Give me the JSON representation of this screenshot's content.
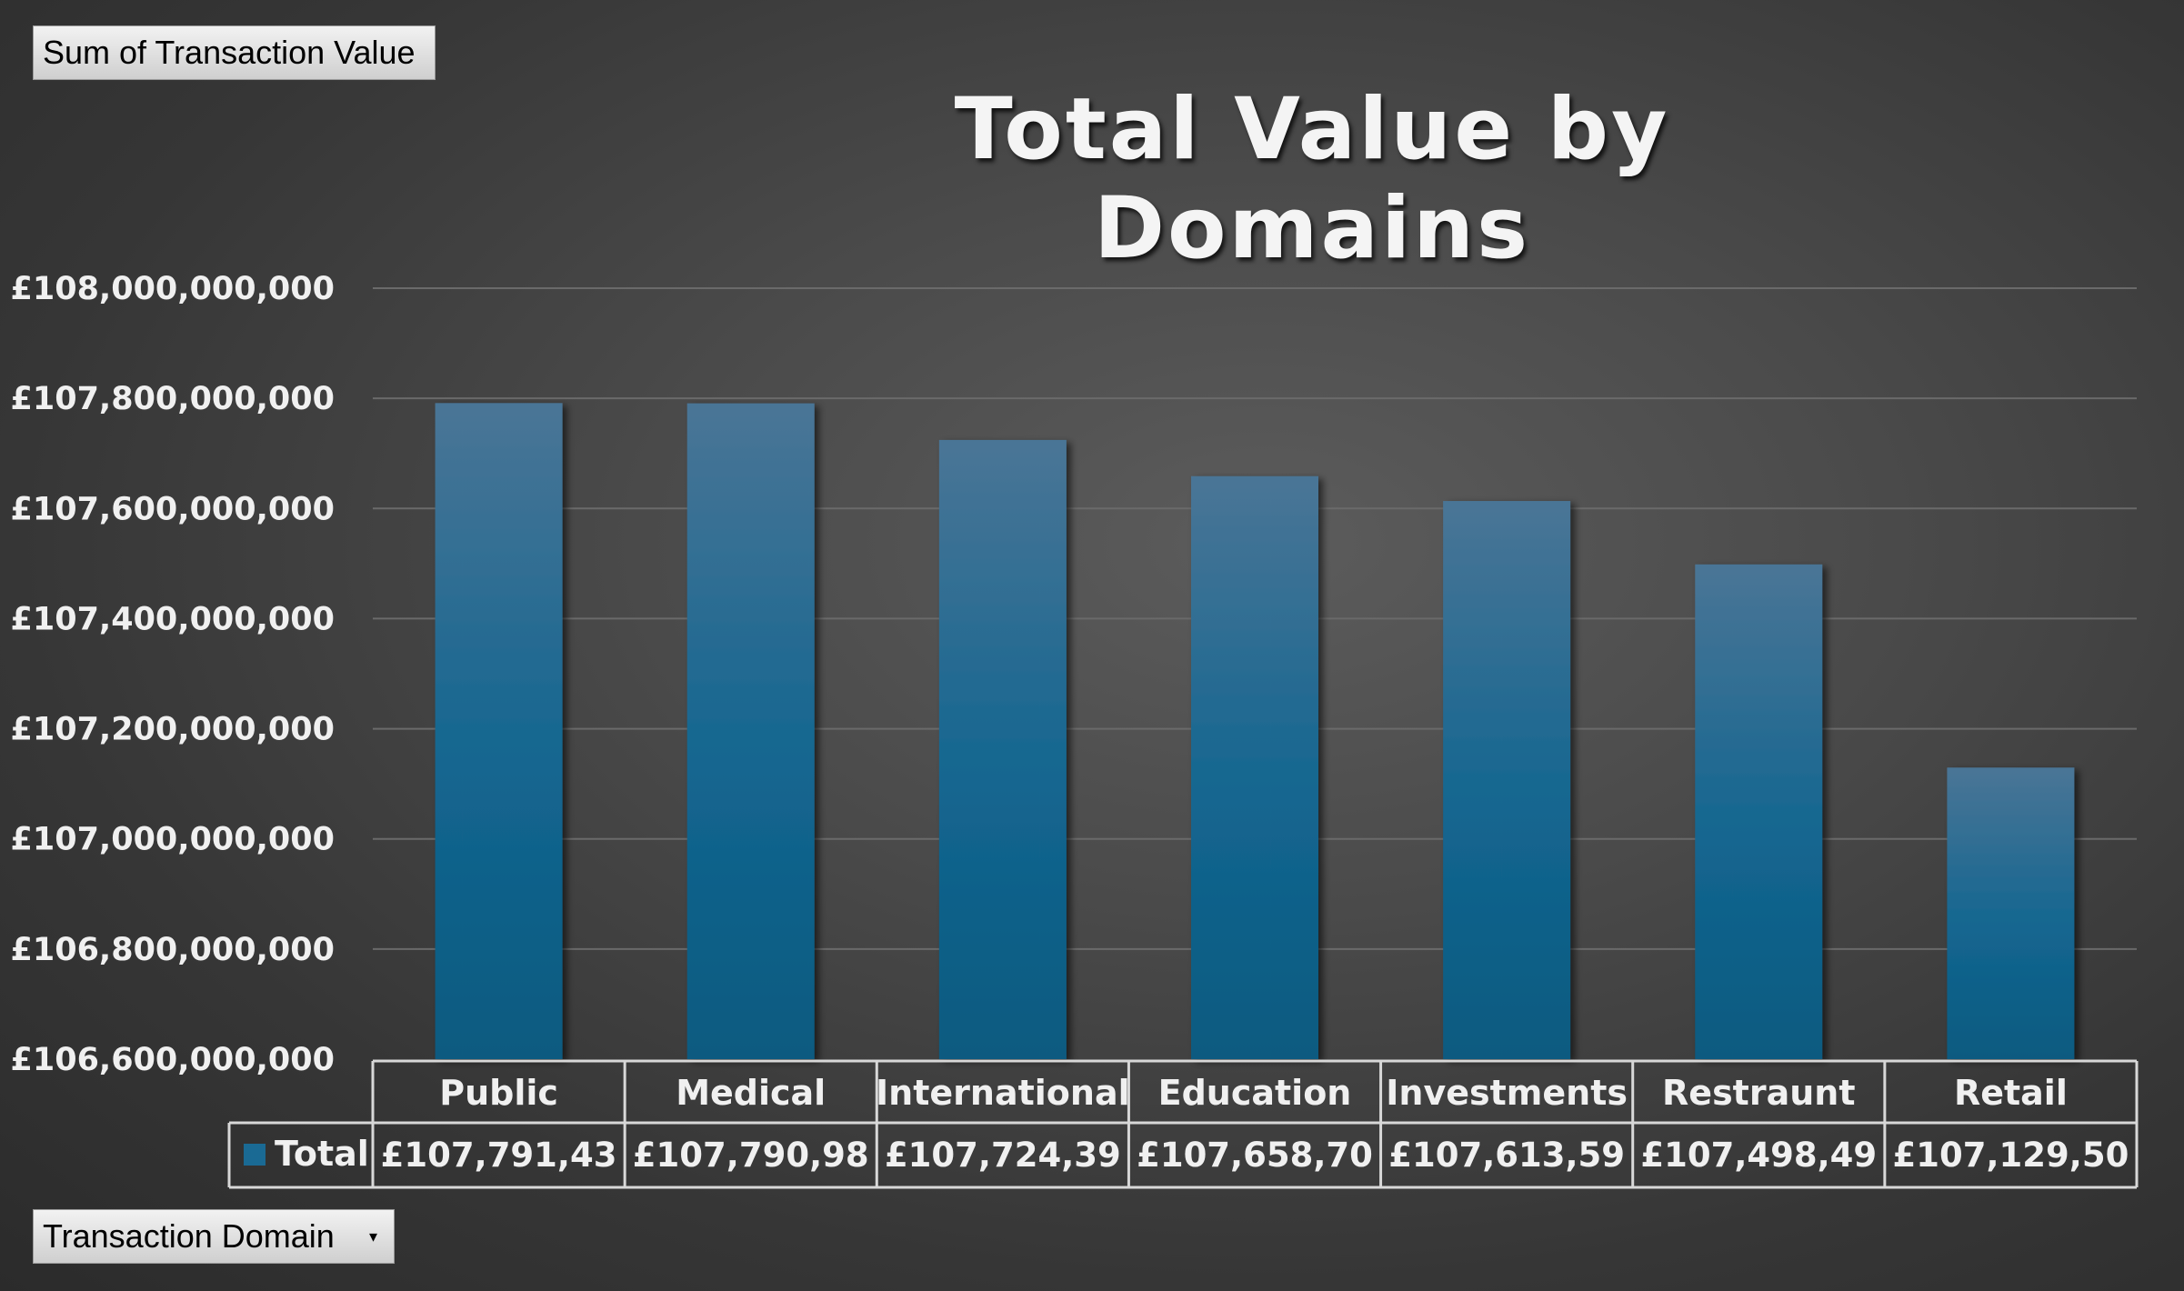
{
  "filter_buttons": {
    "value_field": "Sum of Transaction Value",
    "axis_field": "Transaction Domain",
    "axis_field_icon": "dropdown-arrow-icon"
  },
  "colors": {
    "bar_top": "#4a7596",
    "bar_bottom": "#0c5a80",
    "legend_key": "#1a6a94",
    "gridline": "#6a6a6a",
    "table_border": "#d8d8d8"
  },
  "chart_data": {
    "type": "bar",
    "title": "Total Value by Domains",
    "xlabel": "",
    "ylabel": "",
    "categories": [
      "Public",
      "Medical",
      "International",
      "Education",
      "Investments",
      "Restraunt",
      "Retail"
    ],
    "series": [
      {
        "name": "Total",
        "values": [
          107791430000,
          107790980000,
          107724390000,
          107658700000,
          107613590000,
          107498490000,
          107129500000
        ]
      }
    ],
    "data_labels": [
      "£107,791,43",
      "£107,790,98",
      "£107,724,39",
      "£107,658,70",
      "£107,613,59",
      "£107,498,49",
      "£107,129,50"
    ],
    "yticks": [
      {
        "value": 108000000000,
        "label": "£108,000,000,000"
      },
      {
        "value": 107800000000,
        "label": "£107,800,000,000"
      },
      {
        "value": 107600000000,
        "label": "£107,600,000,000"
      },
      {
        "value": 107400000000,
        "label": "£107,400,000,000"
      },
      {
        "value": 107200000000,
        "label": "£107,200,000,000"
      },
      {
        "value": 107000000000,
        "label": "£107,000,000,000"
      },
      {
        "value": 106800000000,
        "label": "£106,800,000,000"
      },
      {
        "value": 106600000000,
        "label": "£106,600,000,000"
      }
    ],
    "ylim": [
      106600000000,
      108000000000
    ],
    "grid": true,
    "legend": "data-table"
  }
}
